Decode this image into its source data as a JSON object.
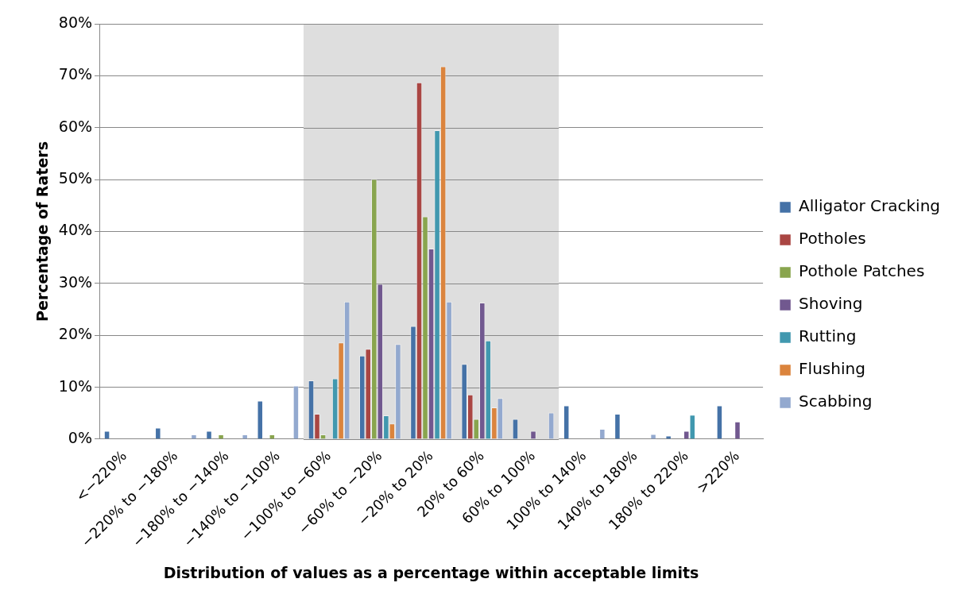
{
  "chart_data": {
    "type": "bar",
    "xlabel": "Distribution of values as a percentage within acceptable limits",
    "ylabel": "Percentage of Raters",
    "categories": [
      "<−220%",
      "−220% to −180%",
      "−180% to −140%",
      "−140% to −100%",
      "−100% to −60%",
      "−60% to −20%",
      "−20% to 20%",
      "20% to 60%",
      "60% to 100%",
      "100% to 140%",
      "140% to 180%",
      "180% to 220%",
      ">220%"
    ],
    "series": [
      {
        "name": "Alligator Cracking",
        "color": "#4572a7",
        "values": [
          1.6,
          2.2,
          1.6,
          7.4,
          11.3,
          16.1,
          21.8,
          14.5,
          3.9,
          6.5,
          4.9,
          0.7,
          6.5
        ]
      },
      {
        "name": "Potholes",
        "color": "#aa4643",
        "values": [
          0,
          0,
          0,
          0,
          4.9,
          17.4,
          68.7,
          8.6,
          0,
          0,
          0,
          0,
          0
        ]
      },
      {
        "name": "Pothole Patches",
        "color": "#89a54e",
        "values": [
          0,
          0,
          0.9,
          0.9,
          0.9,
          50.1,
          42.9,
          3.9,
          0,
          0,
          0,
          0,
          0
        ]
      },
      {
        "name": "Shoving",
        "color": "#71588f",
        "values": [
          0,
          0,
          0,
          0,
          0,
          29.9,
          36.7,
          26.3,
          1.6,
          0,
          0,
          1.6,
          3.4
        ]
      },
      {
        "name": "Rutting",
        "color": "#4198af",
        "values": [
          0,
          0,
          0,
          0,
          11.7,
          4.6,
          59.5,
          19.0,
          0,
          0,
          0,
          4.7,
          0
        ]
      },
      {
        "name": "Flushing",
        "color": "#db843d",
        "values": [
          0,
          0,
          0,
          0,
          18.6,
          3.0,
          71.8,
          6.1,
          0,
          0,
          0,
          0,
          0
        ]
      },
      {
        "name": "Scabbing",
        "color": "#93a9cf",
        "values": [
          0,
          0.9,
          0.9,
          10.3,
          26.5,
          18.3,
          26.5,
          7.9,
          5.1,
          2.0,
          1.0,
          0,
          0
        ]
      }
    ],
    "ylim": [
      0,
      80
    ],
    "yticks": [
      {
        "value": 0,
        "label": "0%"
      },
      {
        "value": 10,
        "label": "10%"
      },
      {
        "value": 20,
        "label": "20%"
      },
      {
        "value": 30,
        "label": "30%"
      },
      {
        "value": 40,
        "label": "40%"
      },
      {
        "value": 50,
        "label": "50%"
      },
      {
        "value": 60,
        "label": "60%"
      },
      {
        "value": 70,
        "label": "70%"
      },
      {
        "value": 80,
        "label": "80%"
      }
    ],
    "bands": [
      {
        "axis": "x",
        "from": "−100% to −60%",
        "to": "60% to 100%",
        "color": "#dedede"
      }
    ],
    "grid": "y",
    "legend": "right"
  }
}
